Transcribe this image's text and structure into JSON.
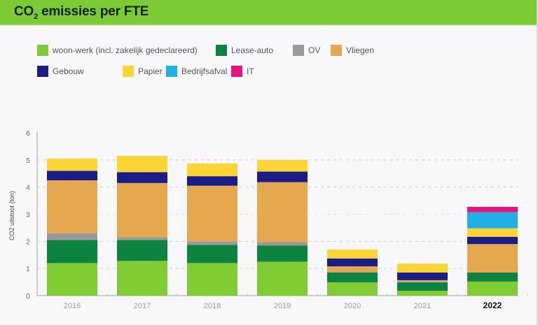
{
  "header": {
    "title_main": "CO",
    "title_sub": "2",
    "title_rest": " emissies per FTE"
  },
  "colors": {
    "header_bg": "#7dcb34"
  },
  "chart_data": {
    "type": "bar",
    "stacked": true,
    "title": "CO2 emissies per FTE",
    "xlabel": "",
    "ylabel": "CO2 uitstoot (ton)",
    "ylim": [
      0,
      6
    ],
    "yticks": [
      "0",
      "1",
      "2",
      "3",
      "4",
      "5",
      "6"
    ],
    "grid": true,
    "legend_position": "top",
    "categories": [
      "2016",
      "2017",
      "2018",
      "2019",
      "2020",
      "2021",
      "2022"
    ],
    "highlight_category": "2022",
    "series": [
      {
        "name": "woon-werk (incl. zakelijk gedeclareerd)",
        "color": "#7fcd32",
        "values": [
          1.2,
          1.28,
          1.2,
          1.25,
          0.49,
          0.18,
          0.52
        ]
      },
      {
        "name": "Lease-auto",
        "color": "#0c8440",
        "values": [
          0.85,
          0.77,
          0.67,
          0.6,
          0.36,
          0.31,
          0.33
        ]
      },
      {
        "name": "OV",
        "color": "#9a9a9c",
        "values": [
          0.25,
          0.1,
          0.13,
          0.12,
          0.02,
          0.02,
          0.0
        ]
      },
      {
        "name": "Vliegen",
        "color": "#e5a84f",
        "values": [
          1.95,
          2.0,
          2.05,
          2.21,
          0.21,
          0.06,
          1.05
        ]
      },
      {
        "name": "Gebouw",
        "color": "#1a1d86",
        "values": [
          0.35,
          0.4,
          0.35,
          0.39,
          0.29,
          0.28,
          0.27
        ]
      },
      {
        "name": "Papier",
        "color": "#fbd535",
        "values": [
          0.45,
          0.6,
          0.47,
          0.43,
          0.33,
          0.33,
          0.31
        ]
      },
      {
        "name": "Bedrijfsafval",
        "color": "#1fb0e6",
        "values": [
          0,
          0,
          0,
          0,
          0,
          0,
          0.59
        ]
      },
      {
        "name": "IT",
        "color": "#e3157f",
        "values": [
          0,
          0,
          0,
          0,
          0,
          0,
          0.2
        ]
      }
    ]
  }
}
